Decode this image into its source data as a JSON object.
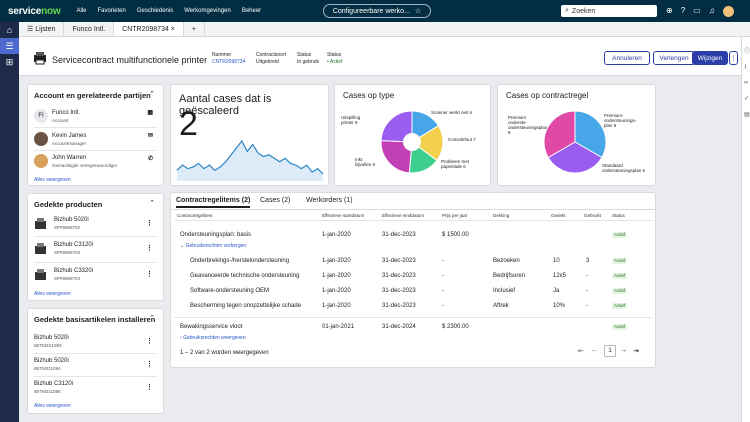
{
  "topbar": {
    "logo_a": "service",
    "logo_b": "now",
    "menu": [
      "Alle",
      "Favorieten",
      "Geschiedenis",
      "Werkomgevingen",
      "Beheer"
    ],
    "context": "Configureerbare werko...",
    "search_placeholder": "Zoeken"
  },
  "tabs": {
    "list": "Lijsten",
    "tab1": "Funco Intl.",
    "tab2": "CNTR2098734",
    "add": "+"
  },
  "header": {
    "title": "Servicecontract multifunctionele printer",
    "meta": [
      {
        "label": "Nummer",
        "value": "CNTR2098734"
      },
      {
        "label": "Contractsoort",
        "value": "Uitgebreid"
      },
      {
        "label": "Status",
        "value": "In gebruik"
      },
      {
        "label": "Status",
        "value": "• Actief"
      }
    ],
    "buttons": {
      "cancel": "Annuleren",
      "extend": "Verlengen",
      "edit": "Wijzigen"
    }
  },
  "accounts": {
    "title": "Account en gerelateerde partijen",
    "items": [
      {
        "initials": "FI",
        "name": "Funco Intl.",
        "role": "Account"
      },
      {
        "name": "Kevin James",
        "role": "Accountmanager"
      },
      {
        "name": "John Warren",
        "role": "Gemachtigde vertegenwoordiger"
      }
    ],
    "link": "Alles weergeven"
  },
  "products": {
    "title": "Gedekte producten",
    "items": [
      {
        "name": "Bizhub 5020i",
        "id": "SP#9969702"
      },
      {
        "name": "Bizhub C3120i",
        "id": "SP#9969703"
      },
      {
        "name": "Bizhub C3320i",
        "id": "SP#9969704"
      }
    ],
    "link": "Alles weergeven"
  },
  "installed": {
    "title": "Gedekte basisartikelen installeren",
    "items": [
      {
        "name": "Bizhub 5020i",
        "id": "IBITM2S1093"
      },
      {
        "name": "Bizhub 5020i",
        "id": "IBITM211094"
      },
      {
        "name": "Bizhub C3120i",
        "id": "IBITM211095"
      }
    ],
    "link": "Alles weergeven"
  },
  "escalated": {
    "title": "Aantal cases dat is geëscaleerd",
    "value": "2"
  },
  "casetype": {
    "title": "Cases op type",
    "labels": [
      {
        "text": "Scanner werkt niet",
        "n": "6"
      },
      {
        "text": "Consolefout",
        "n": "7"
      },
      {
        "text": "Probleem met papierlade",
        "n": "6"
      },
      {
        "text": "Inkt bijvullen",
        "n": "9"
      },
      {
        "text": "Uitspilling printer",
        "n": "9"
      }
    ]
  },
  "contractline": {
    "title": "Cases op contractregel",
    "labels": [
      {
        "text": "Premium onderste-ondersteuningsplan",
        "n": "6"
      },
      {
        "text": "Premium-ondersteunings-plan",
        "n": "6"
      },
      {
        "text": "Standaard ondersteuningsplan",
        "n": "6"
      }
    ]
  },
  "chart_data": [
    {
      "type": "line",
      "title": "Aantal cases dat is geëscaleerd",
      "values": [
        5,
        8,
        6,
        7,
        9,
        6,
        8,
        5,
        7,
        10,
        14,
        18,
        22,
        16,
        20,
        15,
        13,
        14,
        12,
        10,
        12,
        9,
        8,
        6,
        8,
        4,
        6,
        3
      ]
    },
    {
      "type": "pie",
      "title": "Cases op type",
      "categories": [
        "Scanner werkt niet",
        "Consolefout",
        "Probleem met papierlade",
        "Inkt bijvullen",
        "Uitspilling printer"
      ],
      "values": [
        6,
        7,
        6,
        9,
        9
      ],
      "colors": [
        "#46a6e8",
        "#f2d04d",
        "#3ecf8e",
        "#c23fb5",
        "#9b5cf0"
      ]
    },
    {
      "type": "pie",
      "title": "Cases op contractregel",
      "categories": [
        "Premium onderste-ondersteuningsplan",
        "Premium-ondersteunings-plan",
        "Standaard ondersteuningsplan"
      ],
      "values": [
        6,
        6,
        6
      ],
      "colors": [
        "#46a6e8",
        "#9b5cf0",
        "#e04aa6"
      ]
    }
  ],
  "lines": {
    "tabs": [
      "Contractregelitems (2)",
      "Cases (2)",
      "Werkorders (1)"
    ],
    "columns": [
      "Contractregelitem",
      "Effectieve startdatum",
      "Effectieve einddatum",
      "Prijs per jaar",
      "Dekking",
      "Gedekt",
      "Gebruikt",
      "Status"
    ],
    "group1": {
      "name": "Ondersteuningsplan: basis",
      "start": "1-jan-2020",
      "end": "31-dec-2023",
      "price": "$ 1500.00",
      "status": "Actief"
    },
    "toggle_hide": "Gebruiksrechten verbergen",
    "rows": [
      {
        "name": "Onderbrekings-/herstelondersteuning",
        "start": "1-jan-2020",
        "end": "31-dec-2023",
        "price": "-",
        "coverage": "Bezoeken",
        "covered": "10",
        "used": "3",
        "status": "Actief"
      },
      {
        "name": "Geavanceerde technische ondersteuning",
        "start": "1-jan-2020",
        "end": "31-dec-2023",
        "price": "-",
        "coverage": "Bedrijfsuren",
        "covered": "12x5",
        "used": "-",
        "status": "Actief"
      },
      {
        "name": "Software-ondersteuning OEM",
        "start": "1-jan-2020",
        "end": "31-dec-2023",
        "price": "-",
        "coverage": "Inclusief",
        "covered": "Ja",
        "used": "-",
        "status": "Actief"
      },
      {
        "name": "Bescherming tegen onopzettelijke schade",
        "start": "1-jan-2020",
        "end": "31-dec-2023",
        "price": "-",
        "coverage": "Aftrek",
        "covered": "10%",
        "used": "-",
        "status": "Actief"
      }
    ],
    "group2": {
      "name": "Bewakingsservice vloot",
      "start": "01-jan-2021",
      "end": "31-dec-2024",
      "price": "$ 2300.00",
      "status": "Actief"
    },
    "toggle_show": "Gebruiksrechten weergeven",
    "pagination": "1 – 2 van 2 worden weergegeven",
    "page": "1"
  }
}
